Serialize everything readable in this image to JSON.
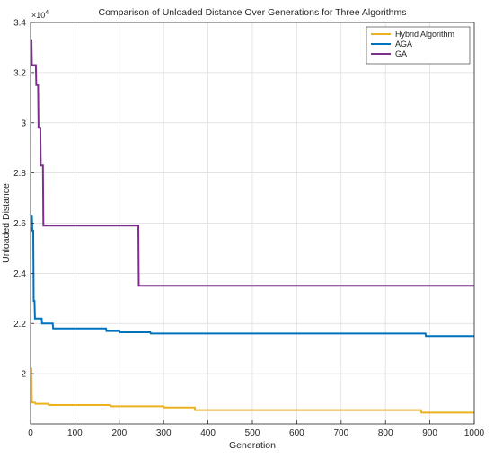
{
  "chart_data": {
    "type": "line",
    "title": "Comparison of Unloaded Distance Over Generations for Three Algorithms",
    "xlabel": "Generation",
    "ylabel": "Unloaded Distance",
    "y_exponent_label": "×10",
    "y_exponent_power": "4",
    "xlim": [
      0,
      1000
    ],
    "ylim": [
      18000,
      34000
    ],
    "xticks": [
      0,
      100,
      200,
      300,
      400,
      500,
      600,
      700,
      800,
      900,
      1000
    ],
    "yticks": [
      20000,
      22000,
      24000,
      26000,
      28000,
      30000,
      32000,
      34000
    ],
    "ytick_labels": [
      "2",
      "2.2",
      "2.4",
      "2.6",
      "2.8",
      "3",
      "3.2",
      "3.4"
    ],
    "grid": true,
    "legend_position": "top-right",
    "series": [
      {
        "name": "Hybrid Algorithm",
        "color": "#EDB120",
        "points": [
          [
            0,
            20200
          ],
          [
            2,
            20200
          ],
          [
            3,
            18850
          ],
          [
            10,
            18850
          ],
          [
            11,
            18800
          ],
          [
            40,
            18800
          ],
          [
            41,
            18750
          ],
          [
            180,
            18750
          ],
          [
            181,
            18700
          ],
          [
            300,
            18700
          ],
          [
            301,
            18650
          ],
          [
            370,
            18650
          ],
          [
            371,
            18550
          ],
          [
            880,
            18550
          ],
          [
            881,
            18450
          ],
          [
            1000,
            18450
          ]
        ]
      },
      {
        "name": "AGA",
        "color": "#0072BD",
        "points": [
          [
            0,
            26300
          ],
          [
            3,
            26300
          ],
          [
            4,
            25700
          ],
          [
            6,
            25700
          ],
          [
            7,
            22900
          ],
          [
            9,
            22900
          ],
          [
            10,
            22200
          ],
          [
            25,
            22200
          ],
          [
            26,
            22000
          ],
          [
            50,
            22000
          ],
          [
            51,
            21800
          ],
          [
            170,
            21800
          ],
          [
            171,
            21700
          ],
          [
            200,
            21700
          ],
          [
            201,
            21650
          ],
          [
            270,
            21650
          ],
          [
            271,
            21600
          ],
          [
            890,
            21600
          ],
          [
            891,
            21500
          ],
          [
            1000,
            21500
          ]
        ]
      },
      {
        "name": "GA",
        "color": "#7E2F8E",
        "points": [
          [
            0,
            33300
          ],
          [
            2,
            33300
          ],
          [
            3,
            32300
          ],
          [
            12,
            32300
          ],
          [
            13,
            31500
          ],
          [
            17,
            31500
          ],
          [
            18,
            29800
          ],
          [
            22,
            29800
          ],
          [
            23,
            28300
          ],
          [
            28,
            28300
          ],
          [
            29,
            25900
          ],
          [
            243,
            25900
          ],
          [
            244,
            23500
          ],
          [
            1000,
            23500
          ]
        ]
      }
    ]
  }
}
